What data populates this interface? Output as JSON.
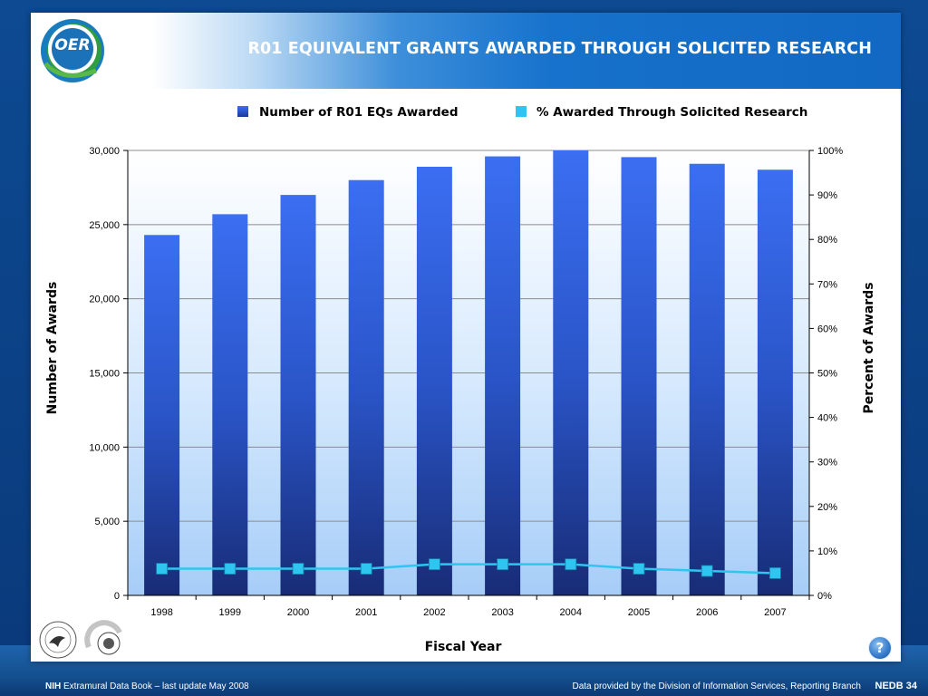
{
  "header": {
    "title": "R01 EQUIVALENT GRANTS AWARDED THROUGH SOLICITED RESEARCH",
    "logo_text": "OER"
  },
  "chart_data": {
    "type": "bar",
    "categories": [
      "1998",
      "1999",
      "2000",
      "2001",
      "2002",
      "2003",
      "2004",
      "2005",
      "2006",
      "2007"
    ],
    "series": [
      {
        "name": "Number of R01 EQs Awarded",
        "type": "bar",
        "axis": "left",
        "values": [
          24300,
          25700,
          27000,
          28000,
          28900,
          29600,
          30000,
          29550,
          29100,
          28700
        ],
        "color": "#2f62d8"
      },
      {
        "name": "% Awarded Through Solicited Research",
        "type": "line",
        "axis": "right",
        "values": [
          6.0,
          6.0,
          6.0,
          6.0,
          7.0,
          7.0,
          7.0,
          6.0,
          5.5,
          5.0
        ],
        "color": "#2ec6f0"
      }
    ],
    "xlabel": "Fiscal Year",
    "ylabel": "Number of Awards",
    "y2label": "Percent of Awards",
    "ylim": [
      0,
      30000
    ],
    "y2lim": [
      0,
      100
    ],
    "yticks": [
      "0",
      "5,000",
      "10,000",
      "15,000",
      "20,000",
      "25,000",
      "30,000"
    ],
    "y2ticks": [
      "0%",
      "10%",
      "20%",
      "30%",
      "40%",
      "50%",
      "60%",
      "70%",
      "80%",
      "90%",
      "100%"
    ],
    "grid": true,
    "legend_position": "top"
  },
  "footer": {
    "brand": "NIH",
    "left_text": "Extramural Data Book – last update May 2008",
    "right_text": "Data provided by the Division of Information Services, Reporting Branch",
    "page_label": "NEDB 34"
  },
  "help": {
    "label": "?"
  },
  "colors": {
    "slide_background": "#0b3a78",
    "header_blue": "#1268c2",
    "bar_top": "#3a6cf0",
    "bar_bottom": "#1a2f7a",
    "plot_background": "#a9d0fa",
    "line_color": "#2ec6f0"
  }
}
